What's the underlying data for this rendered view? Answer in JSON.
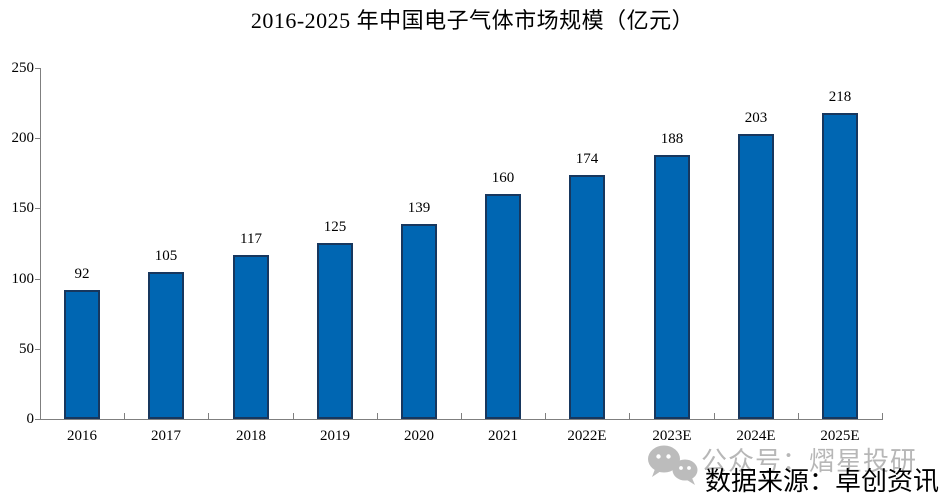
{
  "chart_data": {
    "type": "bar",
    "title": "2016-2025 年中国电子气体市场规模（亿元）",
    "categories": [
      "2016",
      "2017",
      "2018",
      "2019",
      "2020",
      "2021",
      "2022E",
      "2023E",
      "2024E",
      "2025E"
    ],
    "values": [
      92,
      105,
      117,
      125,
      139,
      160,
      174,
      188,
      203,
      218
    ],
    "xlabel": "",
    "ylabel": "",
    "ylim": [
      0,
      250
    ],
    "yticks": [
      0,
      50,
      100,
      150,
      200,
      250
    ],
    "grid": false,
    "legend": null,
    "data_labels": true
  },
  "source": {
    "text": "数据来源：卓创资讯"
  },
  "watermark": {
    "icon": "wechat-icon",
    "text": "公众号：熠星投研"
  },
  "colors": {
    "bar_fill": "#0066B2",
    "bar_border": "#17375E",
    "axis": "#7f7f7f",
    "text": "#000000",
    "watermark_gray": "#b7b7b7"
  }
}
